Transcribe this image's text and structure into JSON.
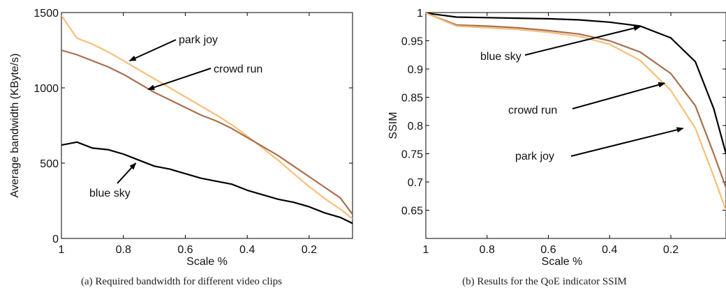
{
  "chart_data": [
    {
      "type": "line",
      "xlabel": "Scale %",
      "ylabel": "Average bandwidth (KByte/s)",
      "xlim": [
        1,
        0.06
      ],
      "ylim": [
        0,
        1500
      ],
      "x_reversed": true,
      "xticks": [
        1,
        0.8,
        0.6,
        0.4,
        0.2
      ],
      "xtick_labels": [
        "1",
        "0.8",
        "0.6",
        "0.4",
        "0.2"
      ],
      "yticks": [
        0,
        500,
        1000,
        1500
      ],
      "ytick_labels": [
        "0",
        "500",
        "1000",
        "1500"
      ],
      "grid": false,
      "series": [
        {
          "name": "park joy",
          "color": "#f7bf79",
          "x": [
            1,
            0.95,
            0.9,
            0.85,
            0.8,
            0.75,
            0.7,
            0.65,
            0.6,
            0.55,
            0.5,
            0.45,
            0.4,
            0.35,
            0.3,
            0.25,
            0.2,
            0.15,
            0.1,
            0.06
          ],
          "y": [
            1480,
            1330,
            1290,
            1240,
            1180,
            1120,
            1060,
            1000,
            940,
            880,
            820,
            755,
            680,
            600,
            520,
            430,
            345,
            265,
            195,
            130
          ]
        },
        {
          "name": "crowd run",
          "color": "#a87050",
          "x": [
            1,
            0.95,
            0.9,
            0.85,
            0.8,
            0.75,
            0.7,
            0.65,
            0.6,
            0.55,
            0.5,
            0.45,
            0.4,
            0.35,
            0.3,
            0.25,
            0.2,
            0.15,
            0.1,
            0.06
          ],
          "y": [
            1250,
            1220,
            1180,
            1140,
            1090,
            1030,
            970,
            920,
            870,
            820,
            780,
            730,
            670,
            610,
            550,
            480,
            410,
            340,
            270,
            160
          ]
        },
        {
          "name": "blue sky",
          "color": "#000000",
          "x": [
            1,
            0.95,
            0.9,
            0.85,
            0.8,
            0.75,
            0.7,
            0.65,
            0.6,
            0.55,
            0.5,
            0.45,
            0.4,
            0.35,
            0.3,
            0.25,
            0.2,
            0.15,
            0.1,
            0.06
          ],
          "y": [
            620,
            640,
            600,
            590,
            560,
            520,
            480,
            460,
            430,
            400,
            380,
            360,
            320,
            290,
            260,
            240,
            210,
            170,
            140,
            100
          ]
        }
      ],
      "annotations": [
        {
          "text": "park joy",
          "series": "park joy",
          "target": {
            "x": 0.78,
            "y": 1180
          }
        },
        {
          "text": "crowd run",
          "series": "crowd run",
          "target": {
            "x": 0.72,
            "y": 990
          }
        },
        {
          "text": "blue sky",
          "series": "blue sky",
          "target": {
            "x": 0.76,
            "y": 500
          }
        }
      ]
    },
    {
      "type": "line",
      "xlabel": "Scale %",
      "ylabel": "SSIM",
      "xlim": [
        1,
        0.02
      ],
      "ylim": [
        0.6,
        1.0
      ],
      "x_reversed": true,
      "xticks": [
        1,
        0.8,
        0.6,
        0.4,
        0.2
      ],
      "xtick_labels": [
        "1",
        "0.8",
        "0.6",
        "0.4",
        "0.2"
      ],
      "yticks": [
        0.65,
        0.7,
        0.75,
        0.8,
        0.85,
        0.9,
        0.95,
        1.0
      ],
      "ytick_labels": [
        "0.65",
        "0.7",
        "0.75",
        "0.8",
        "0.85",
        "0.9",
        "0.95",
        "1"
      ],
      "grid": false,
      "series": [
        {
          "name": "blue sky",
          "color": "#000000",
          "x": [
            1,
            0.9,
            0.8,
            0.7,
            0.6,
            0.5,
            0.4,
            0.3,
            0.2,
            0.12,
            0.06,
            0.02
          ],
          "y": [
            0.999,
            0.992,
            0.991,
            0.99,
            0.989,
            0.987,
            0.983,
            0.976,
            0.955,
            0.913,
            0.83,
            0.75
          ]
        },
        {
          "name": "crowd run",
          "color": "#a87050",
          "x": [
            1,
            0.9,
            0.8,
            0.7,
            0.6,
            0.5,
            0.4,
            0.3,
            0.2,
            0.12,
            0.06,
            0.02
          ],
          "y": [
            0.999,
            0.978,
            0.976,
            0.973,
            0.968,
            0.962,
            0.95,
            0.93,
            0.892,
            0.835,
            0.75,
            0.69
          ]
        },
        {
          "name": "park joy",
          "color": "#f7bf79",
          "x": [
            1,
            0.9,
            0.8,
            0.7,
            0.6,
            0.5,
            0.4,
            0.3,
            0.2,
            0.12,
            0.06,
            0.02
          ],
          "y": [
            0.999,
            0.976,
            0.973,
            0.97,
            0.965,
            0.958,
            0.944,
            0.915,
            0.862,
            0.795,
            0.71,
            0.65
          ]
        }
      ],
      "annotations": [
        {
          "text": "blue sky",
          "series": "blue sky",
          "target": {
            "x": 0.3,
            "y": 0.975
          }
        },
        {
          "text": "crowd run",
          "series": "crowd run",
          "target": {
            "x": 0.22,
            "y": 0.875
          }
        },
        {
          "text": "park joy",
          "series": "park joy",
          "target": {
            "x": 0.16,
            "y": 0.795
          }
        }
      ]
    }
  ],
  "captions": {
    "a": "(a) Required bandwidth for different video clips",
    "b": "(b) Results for the QoE indicator SSIM"
  },
  "colors": {
    "axis": "#000000",
    "park_joy": "#f7bf79",
    "crowd_run": "#a87050",
    "blue_sky": "#000000"
  }
}
